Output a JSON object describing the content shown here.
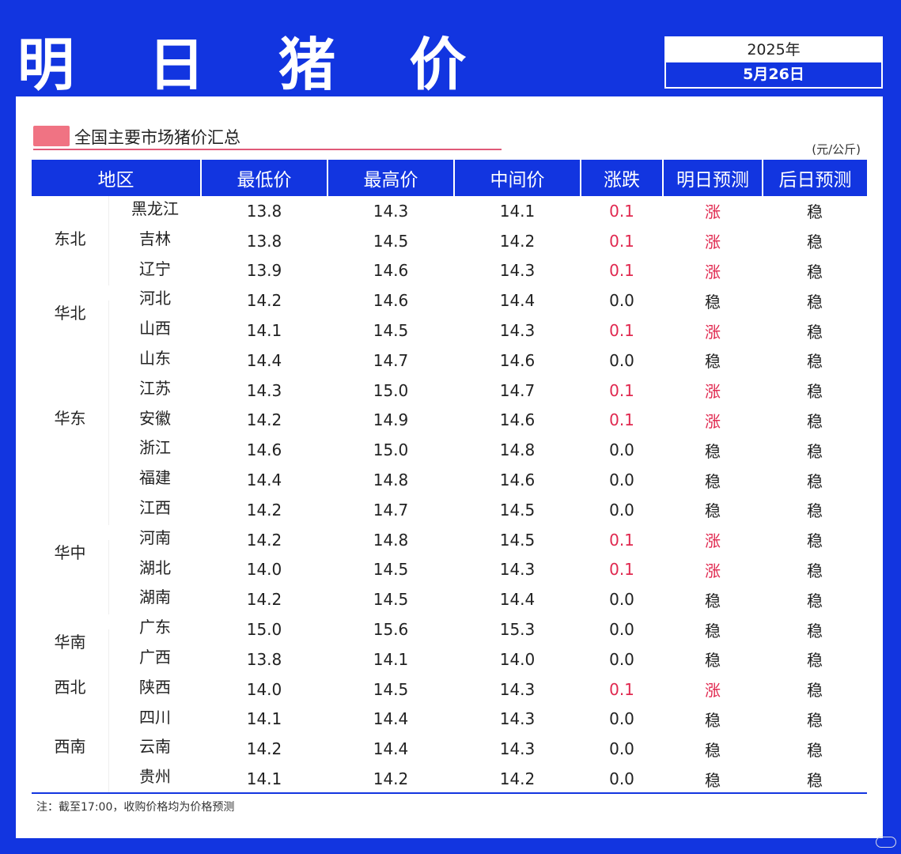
{
  "title": "明 日 猪 价",
  "date": {
    "year": "2025年",
    "day": "5月26日"
  },
  "subheading": "全国主要市场猪价汇总",
  "unit": "(元/公斤)",
  "headers": [
    "地区",
    "最低价",
    "最高价",
    "中间价",
    "涨跌",
    "明日预测",
    "后日预测"
  ],
  "regions": [
    {
      "name": "东北",
      "rows": [
        {
          "prov": "黑龙江",
          "low": "13.8",
          "high": "14.3",
          "mid": "14.1",
          "chg": "0.1",
          "tomorrow": "涨",
          "after": "稳",
          "up": true
        },
        {
          "prov": "吉林",
          "low": "13.8",
          "high": "14.5",
          "mid": "14.2",
          "chg": "0.1",
          "tomorrow": "涨",
          "after": "稳",
          "up": true
        },
        {
          "prov": "辽宁",
          "low": "13.9",
          "high": "14.6",
          "mid": "14.3",
          "chg": "0.1",
          "tomorrow": "涨",
          "after": "稳",
          "up": true
        }
      ]
    },
    {
      "name": "华北",
      "rows": [
        {
          "prov": "河北",
          "low": "14.2",
          "high": "14.6",
          "mid": "14.4",
          "chg": "0.0",
          "tomorrow": "稳",
          "after": "稳",
          "up": false
        },
        {
          "prov": "山西",
          "low": "14.1",
          "high": "14.5",
          "mid": "14.3",
          "chg": "0.1",
          "tomorrow": "涨",
          "after": "稳",
          "up": true
        }
      ]
    },
    {
      "name": "华东",
      "rows": [
        {
          "prov": "山东",
          "low": "14.4",
          "high": "14.7",
          "mid": "14.6",
          "chg": "0.0",
          "tomorrow": "稳",
          "after": "稳",
          "up": false
        },
        {
          "prov": "江苏",
          "low": "14.3",
          "high": "15.0",
          "mid": "14.7",
          "chg": "0.1",
          "tomorrow": "涨",
          "after": "稳",
          "up": true
        },
        {
          "prov": "安徽",
          "low": "14.2",
          "high": "14.9",
          "mid": "14.6",
          "chg": "0.1",
          "tomorrow": "涨",
          "after": "稳",
          "up": true
        },
        {
          "prov": "浙江",
          "low": "14.6",
          "high": "15.0",
          "mid": "14.8",
          "chg": "0.0",
          "tomorrow": "稳",
          "after": "稳",
          "up": false
        },
        {
          "prov": "福建",
          "low": "14.4",
          "high": "14.8",
          "mid": "14.6",
          "chg": "0.0",
          "tomorrow": "稳",
          "after": "稳",
          "up": false
        }
      ]
    },
    {
      "name": "华中",
      "rows": [
        {
          "prov": "江西",
          "low": "14.2",
          "high": "14.7",
          "mid": "14.5",
          "chg": "0.0",
          "tomorrow": "稳",
          "after": "稳",
          "up": false
        },
        {
          "prov": "河南",
          "low": "14.2",
          "high": "14.8",
          "mid": "14.5",
          "chg": "0.1",
          "tomorrow": "涨",
          "after": "稳",
          "up": true
        },
        {
          "prov": "湖北",
          "low": "14.0",
          "high": "14.5",
          "mid": "14.3",
          "chg": "0.1",
          "tomorrow": "涨",
          "after": "稳",
          "up": true
        },
        {
          "prov": "湖南",
          "low": "14.2",
          "high": "14.5",
          "mid": "14.4",
          "chg": "0.0",
          "tomorrow": "稳",
          "after": "稳",
          "up": false
        }
      ]
    },
    {
      "name": "华南",
      "rows": [
        {
          "prov": "广东",
          "low": "15.0",
          "high": "15.6",
          "mid": "15.3",
          "chg": "0.0",
          "tomorrow": "稳",
          "after": "稳",
          "up": false
        },
        {
          "prov": "广西",
          "low": "13.8",
          "high": "14.1",
          "mid": "14.0",
          "chg": "0.0",
          "tomorrow": "稳",
          "after": "稳",
          "up": false
        }
      ]
    },
    {
      "name": "西北",
      "rows": [
        {
          "prov": "陕西",
          "low": "14.0",
          "high": "14.5",
          "mid": "14.3",
          "chg": "0.1",
          "tomorrow": "涨",
          "after": "稳",
          "up": true
        }
      ]
    },
    {
      "name": "西南",
      "rows": [
        {
          "prov": "四川",
          "low": "14.1",
          "high": "14.4",
          "mid": "14.3",
          "chg": "0.0",
          "tomorrow": "稳",
          "after": "稳",
          "up": false
        },
        {
          "prov": "云南",
          "low": "14.2",
          "high": "14.4",
          "mid": "14.3",
          "chg": "0.0",
          "tomorrow": "稳",
          "after": "稳",
          "up": false
        },
        {
          "prov": "贵州",
          "low": "14.1",
          "high": "14.2",
          "mid": "14.2",
          "chg": "0.0",
          "tomorrow": "稳",
          "after": "稳",
          "up": false
        }
      ]
    }
  ],
  "note": "注：截至17:00，收购价格均为价格预测",
  "colors": {
    "brand_blue": "#1235e0",
    "up_red": "#e0284f",
    "accent_pink": "#f07383"
  }
}
